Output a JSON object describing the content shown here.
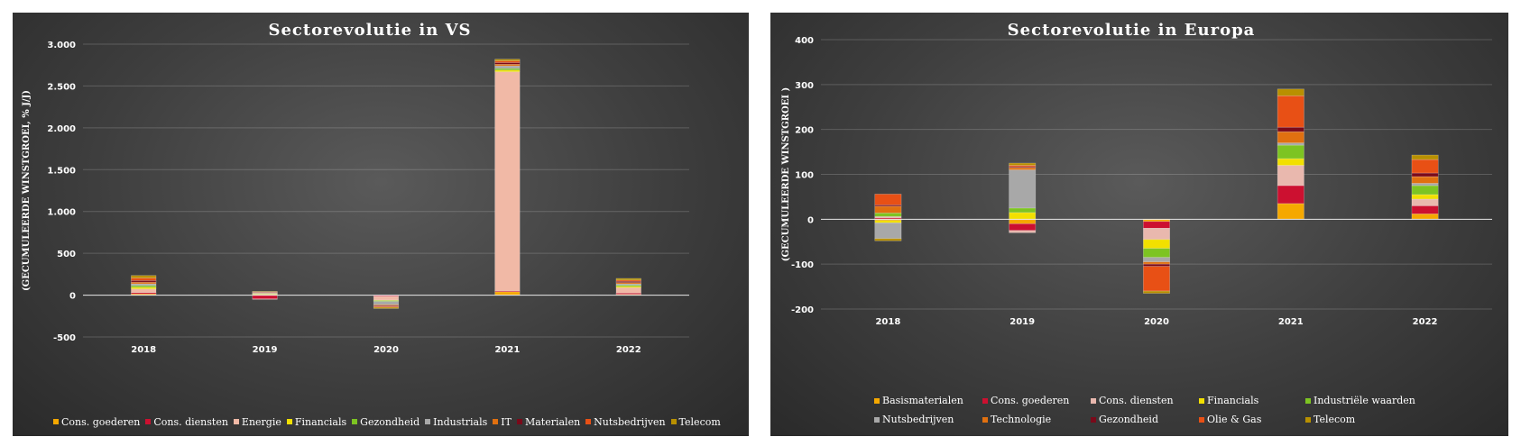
{
  "chart_data": [
    {
      "type": "bar",
      "stacked": true,
      "title": "Sectorevolutie  in VS",
      "ylabel": "(GECUMULEERDE WINSTGROEI, % J/J)",
      "xlabel": "",
      "categories": [
        "2018",
        "2019",
        "2020",
        "2021",
        "2022"
      ],
      "ylim": [
        -500,
        3000
      ],
      "yticks": [
        -500,
        0,
        500,
        1000,
        1500,
        2000,
        2500,
        3000
      ],
      "ytick_labels": [
        "-500",
        "0",
        "500",
        "1.000",
        "1.500",
        "2.000",
        "2.500",
        "3.000"
      ],
      "legend_position": "bottom",
      "series": [
        {
          "name": "Cons. goederen",
          "color": "#f5a800",
          "values": [
            15,
            10,
            -5,
            40,
            10
          ]
        },
        {
          "name": "Cons. diensten",
          "color": "#cc1030",
          "values": [
            15,
            -45,
            -10,
            10,
            15
          ]
        },
        {
          "name": "Energie",
          "color": "#f1b9a6",
          "values": [
            45,
            -5,
            -45,
            2620,
            65
          ]
        },
        {
          "name": "Financials",
          "color": "#f2e000",
          "values": [
            20,
            5,
            -5,
            20,
            15
          ]
        },
        {
          "name": "Gezondheid",
          "color": "#7dc422",
          "values": [
            20,
            5,
            -10,
            20,
            15
          ]
        },
        {
          "name": "Industrials",
          "color": "#a8a8a8",
          "values": [
            20,
            5,
            -40,
            30,
            15
          ]
        },
        {
          "name": "IT",
          "color": "#e07010",
          "values": [
            20,
            5,
            -10,
            20,
            15
          ]
        },
        {
          "name": "Materialen",
          "color": "#7a0a1a",
          "values": [
            20,
            5,
            -10,
            20,
            15
          ]
        },
        {
          "name": "Nutsbedrijven",
          "color": "#e85015",
          "values": [
            30,
            5,
            -10,
            20,
            15
          ]
        },
        {
          "name": "Telecom",
          "color": "#b89000",
          "values": [
            30,
            5,
            -15,
            20,
            20
          ]
        }
      ]
    },
    {
      "type": "bar",
      "stacked": true,
      "title": "Sectorevolutie  in Europa",
      "ylabel": "(GECUMULEERDE WINSTGROEI )",
      "xlabel": "",
      "categories": [
        "2018",
        "2019",
        "2020",
        "2021",
        "2022"
      ],
      "ylim": [
        -200,
        400
      ],
      "yticks": [
        -200,
        -100,
        0,
        100,
        200,
        300,
        400
      ],
      "ytick_labels": [
        "-200",
        "-100",
        "0",
        "100",
        "200",
        "300",
        "400"
      ],
      "legend_position": "bottom",
      "series": [
        {
          "name": "Basismaterialen",
          "color": "#f5a800",
          "values": [
            -3,
            -10,
            -5,
            35,
            12
          ]
        },
        {
          "name": "Cons. goederen",
          "color": "#cc1030",
          "values": [
            3,
            -15,
            -15,
            40,
            18
          ]
        },
        {
          "name": "Cons. diensten",
          "color": "#e9b8ae",
          "values": [
            3,
            -5,
            -25,
            45,
            15
          ]
        },
        {
          "name": "Financials",
          "color": "#f2e000",
          "values": [
            -5,
            15,
            -20,
            15,
            10
          ]
        },
        {
          "name": "Industriële waarden",
          "color": "#7dc422",
          "values": [
            8,
            10,
            -20,
            30,
            20
          ]
        },
        {
          "name": "Nutsbedrijven",
          "color": "#a8a8a8",
          "values": [
            -35,
            85,
            -10,
            5,
            5
          ]
        },
        {
          "name": "Technologie",
          "color": "#e07010",
          "values": [
            15,
            5,
            -5,
            25,
            15
          ]
        },
        {
          "name": "Gezondheid",
          "color": "#7a0a1a",
          "values": [
            3,
            2,
            -5,
            10,
            8
          ]
        },
        {
          "name": "Olie & Gas",
          "color": "#e85015",
          "values": [
            24,
            3,
            -55,
            70,
            30
          ]
        },
        {
          "name": "Telecom",
          "color": "#b89000",
          "values": [
            -5,
            5,
            -5,
            15,
            10
          ]
        }
      ]
    }
  ]
}
